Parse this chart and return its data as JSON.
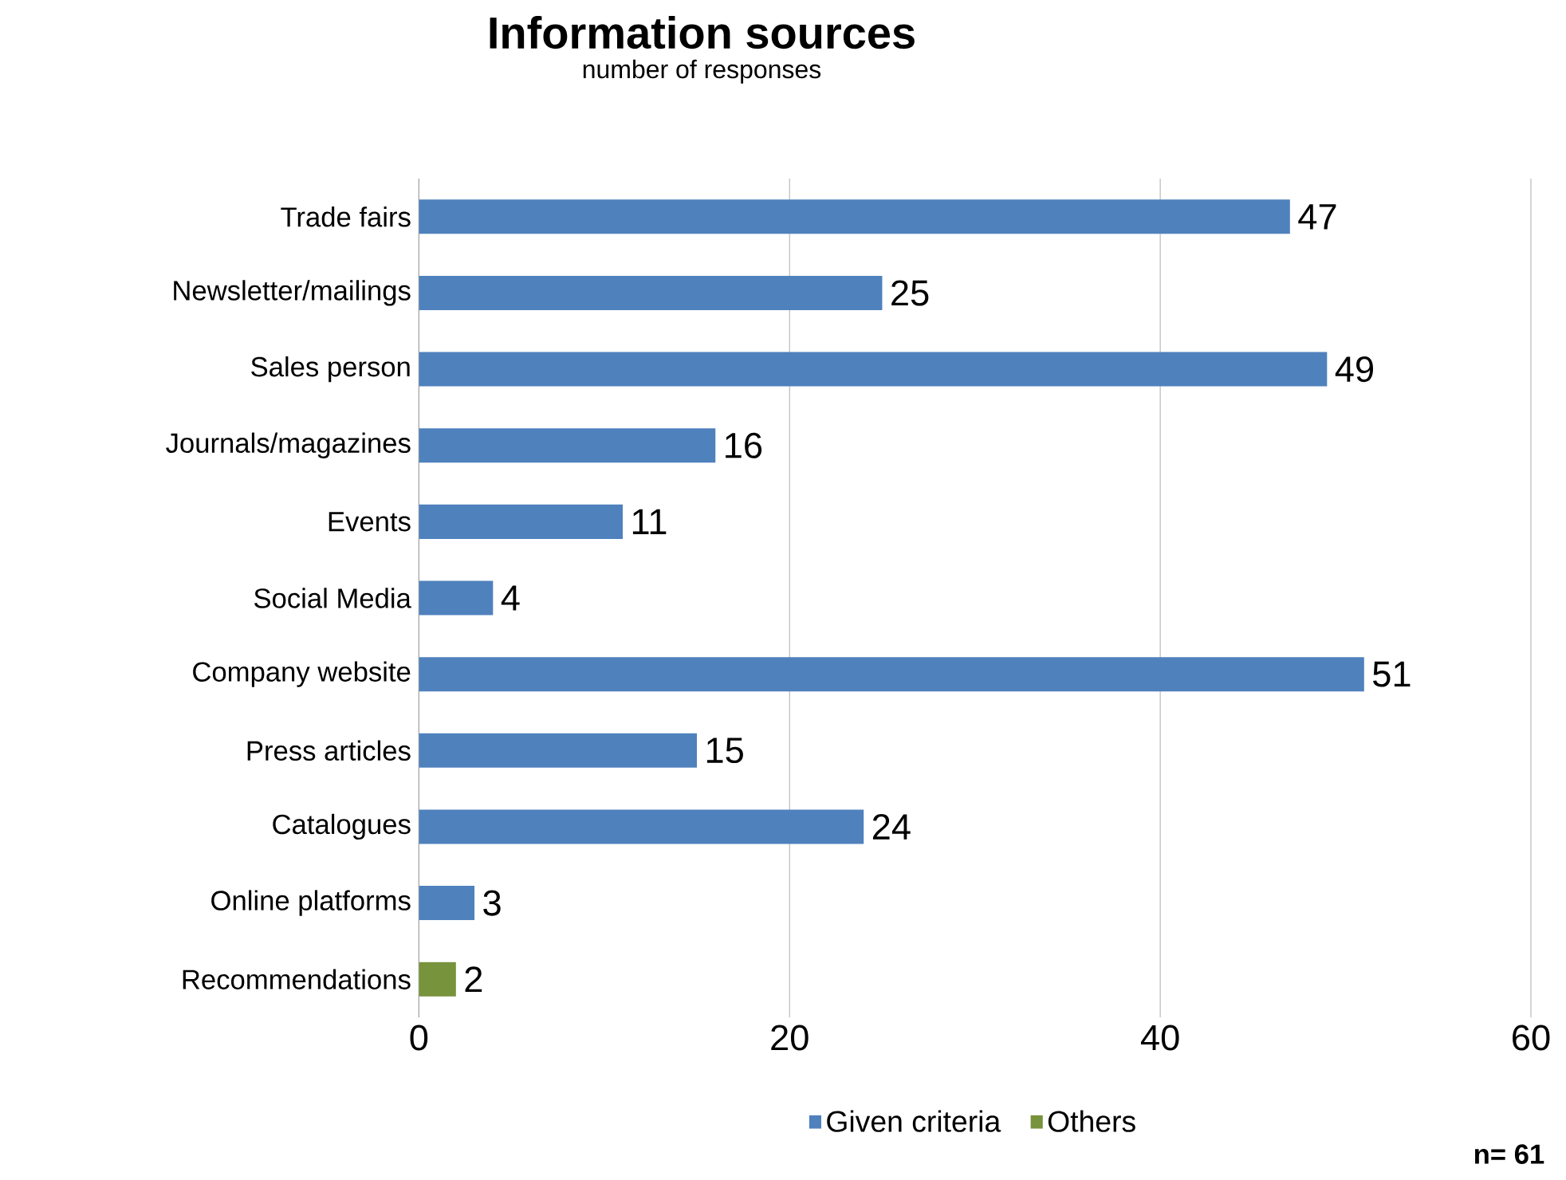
{
  "chart_data": {
    "type": "bar",
    "orientation": "horizontal",
    "title": "Information sources",
    "subtitle": "number of responses",
    "categories": [
      "Trade fairs",
      "Newsletter/mailings",
      "Sales person",
      "Journals/magazines",
      "Events",
      "Social Media",
      "Company website",
      "Press articles",
      "Catalogues",
      "Online platforms",
      "Recommendations"
    ],
    "series": [
      {
        "name": "Given criteria",
        "color": "#4f81bd",
        "values": [
          47,
          25,
          49,
          16,
          11,
          4,
          51,
          15,
          24,
          3,
          null
        ]
      },
      {
        "name": "Others",
        "color": "#77933c",
        "values": [
          null,
          null,
          null,
          null,
          null,
          null,
          null,
          null,
          null,
          null,
          2
        ]
      }
    ],
    "xlim": [
      0,
      60
    ],
    "xticks": [
      0,
      20,
      40,
      60
    ],
    "grid": "x",
    "legend": "bottom",
    "data_labels": true,
    "annotations": [
      "**n= 61**"
    ]
  }
}
